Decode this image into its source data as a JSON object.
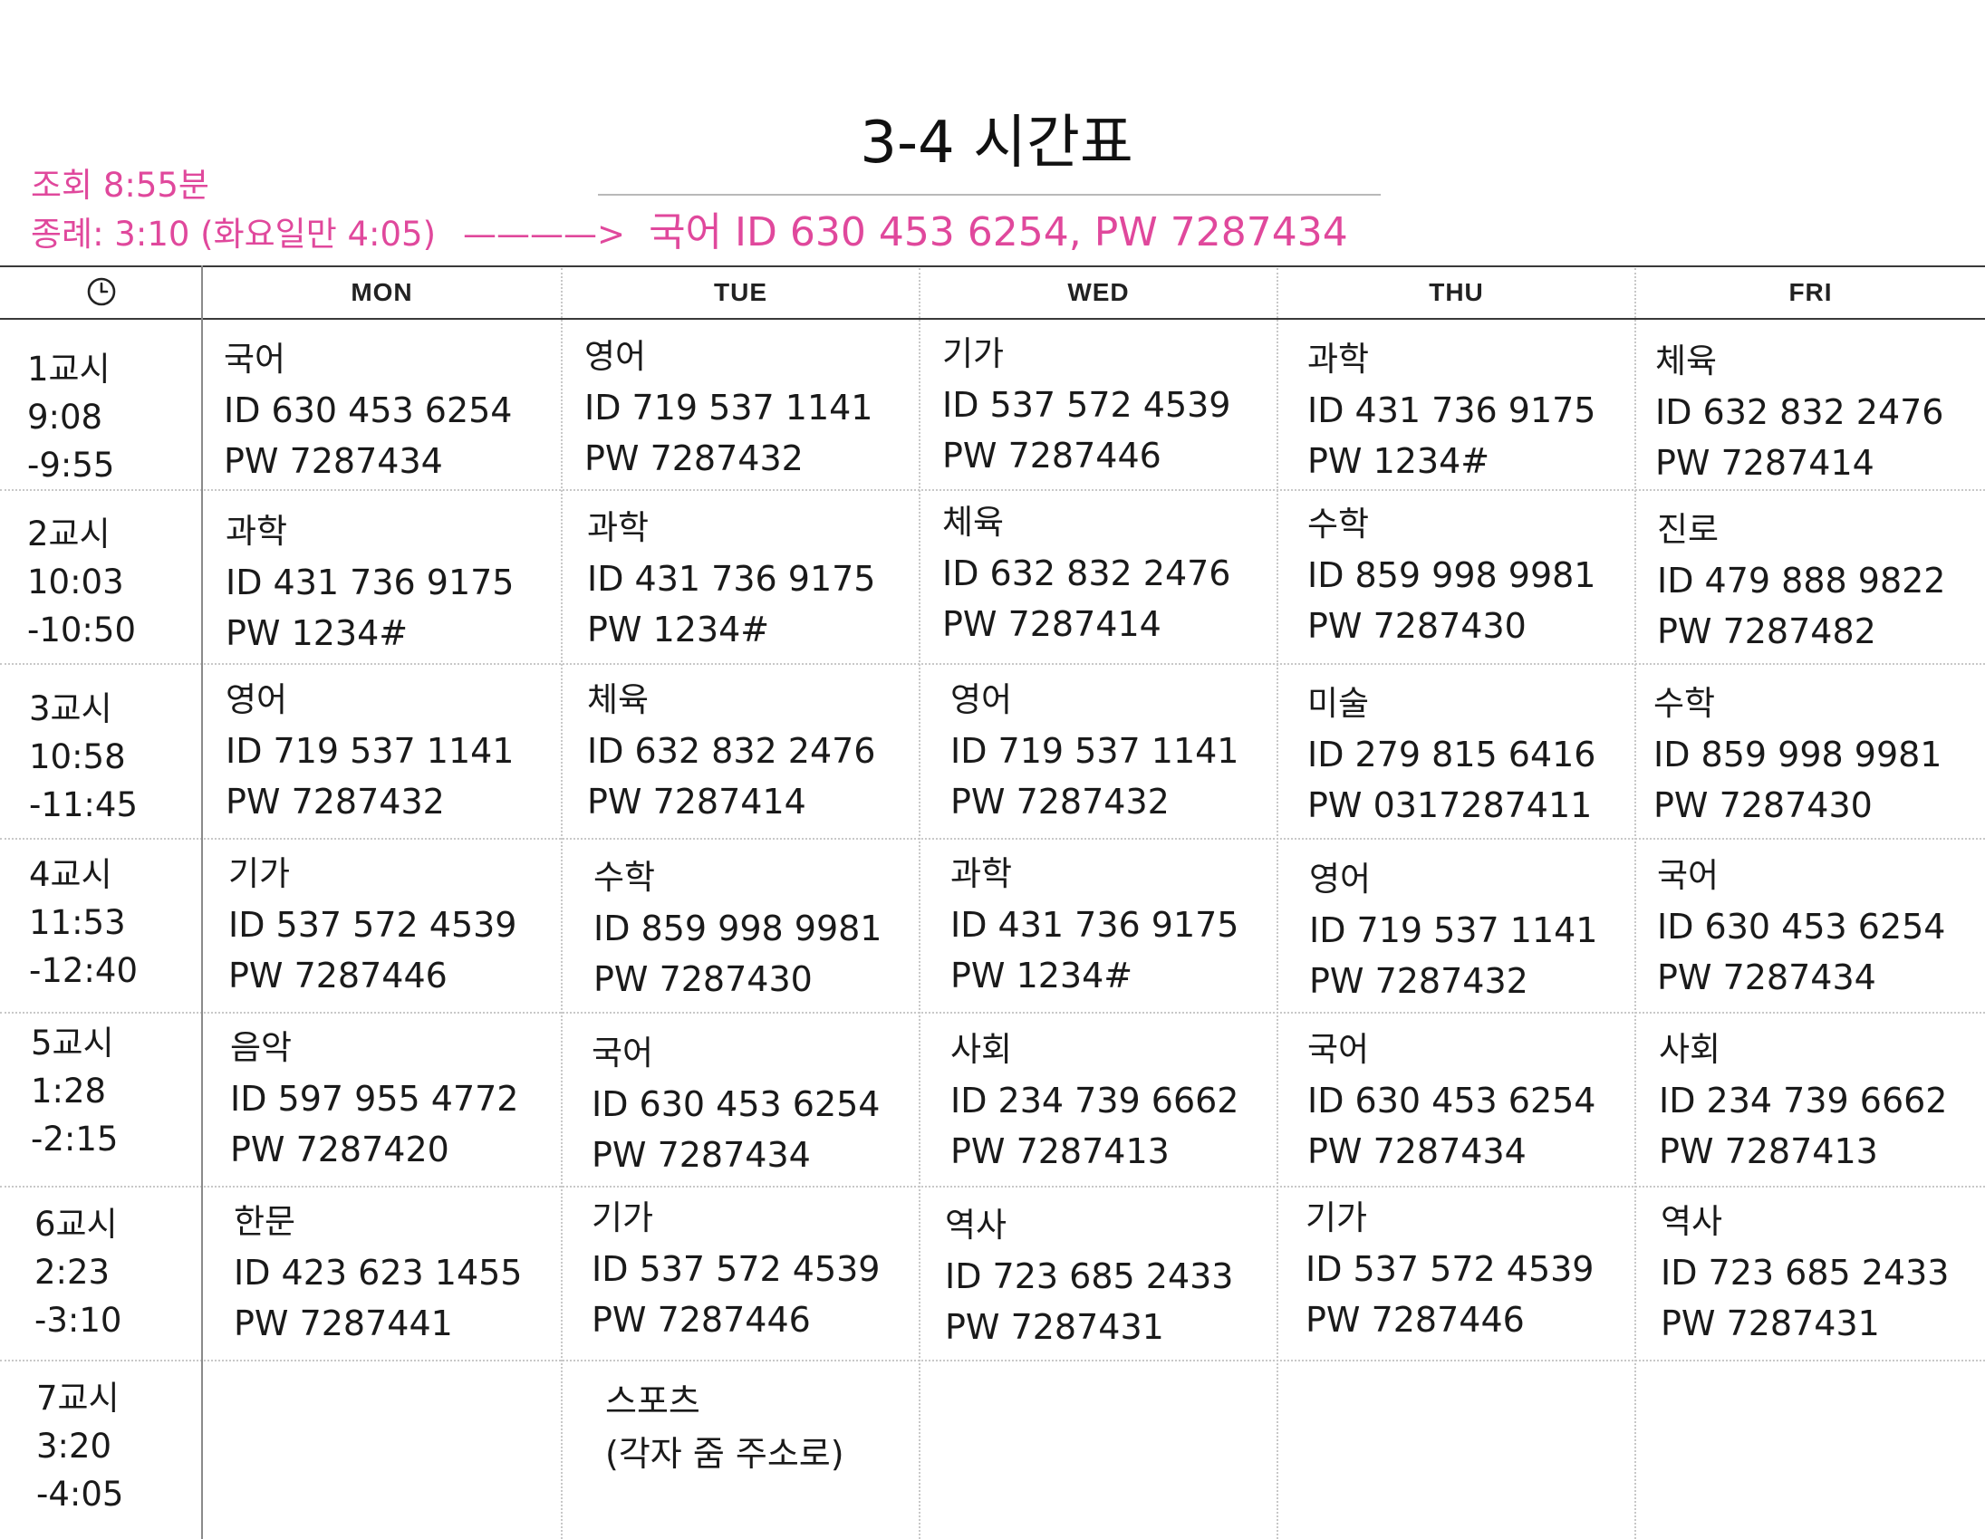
{
  "title": "3-4 시간표",
  "notes": {
    "assembly": "조회 8:55분",
    "closing": "종례: 3:10 (화요일만 4:05)",
    "arrow": "————>",
    "closing_link": "국어 ID 630 453 6254, PW 7287434"
  },
  "days": [
    "MON",
    "TUE",
    "WED",
    "THU",
    "FRI"
  ],
  "header_icon": "clock-icon",
  "periods": [
    {
      "name": "1교시",
      "start": "9:08",
      "end": "-9:55"
    },
    {
      "name": "2교시",
      "start": "10:03",
      "end": "-10:50"
    },
    {
      "name": "3교시",
      "start": "10:58",
      "end": "-11:45"
    },
    {
      "name": "4교시",
      "start": "11:53",
      "end": "-12:40"
    },
    {
      "name": "5교시",
      "start": "1:28",
      "end": "-2:15"
    },
    {
      "name": "6교시",
      "start": "2:23",
      "end": "-3:10"
    },
    {
      "name": "7교시",
      "start": "3:20",
      "end": "-4:05"
    }
  ],
  "rows": [
    [
      {
        "subject": "국어",
        "id": "ID 630 453 6254",
        "pw": "PW 7287434"
      },
      {
        "subject": "영어",
        "id": "ID 719 537 1141",
        "pw": "PW 7287432"
      },
      {
        "subject": "기가",
        "id": "ID 537 572 4539",
        "pw": "PW 7287446"
      },
      {
        "subject": "과학",
        "id": "ID 431 736 9175",
        "pw": "PW 1234#"
      },
      {
        "subject": "체육",
        "id": "ID 632 832 2476",
        "pw": "PW 7287414"
      }
    ],
    [
      {
        "subject": "과학",
        "id": "ID 431 736 9175",
        "pw": "PW 1234#"
      },
      {
        "subject": "과학",
        "id": "ID 431 736 9175",
        "pw": "PW 1234#"
      },
      {
        "subject": "체육",
        "id": "ID 632 832 2476",
        "pw": "PW 7287414"
      },
      {
        "subject": "수학",
        "id": "ID 859 998 9981",
        "pw": "PW 7287430"
      },
      {
        "subject": "진로",
        "id": "ID 479 888 9822",
        "pw": "PW 7287482"
      }
    ],
    [
      {
        "subject": "영어",
        "id": "ID 719 537 1141",
        "pw": "PW 7287432"
      },
      {
        "subject": "체육",
        "id": "ID 632 832 2476",
        "pw": "PW 7287414"
      },
      {
        "subject": "영어",
        "id": "ID 719 537 1141",
        "pw": "PW 7287432"
      },
      {
        "subject": "미술",
        "id": "ID 279 815 6416",
        "pw": "PW 0317287411"
      },
      {
        "subject": "수학",
        "id": "ID 859 998 9981",
        "pw": "PW 7287430"
      }
    ],
    [
      {
        "subject": "기가",
        "id": "ID 537 572 4539",
        "pw": "PW 7287446"
      },
      {
        "subject": "수학",
        "id": "ID 859 998 9981",
        "pw": "PW 7287430"
      },
      {
        "subject": "과학",
        "id": "ID 431 736 9175",
        "pw": "PW 1234#"
      },
      {
        "subject": "영어",
        "id": "ID 719 537 1141",
        "pw": "PW 7287432"
      },
      {
        "subject": "국어",
        "id": "ID 630 453 6254",
        "pw": "PW 7287434"
      }
    ],
    [
      {
        "subject": "음악",
        "id": "ID 597 955 4772",
        "pw": "PW 7287420"
      },
      {
        "subject": "국어",
        "id": "ID 630 453 6254",
        "pw": "PW 7287434"
      },
      {
        "subject": "사회",
        "id": "ID 234 739 6662",
        "pw": "PW 7287413"
      },
      {
        "subject": "국어",
        "id": "ID 630 453 6254",
        "pw": "PW 7287434"
      },
      {
        "subject": "사회",
        "id": "ID 234 739 6662",
        "pw": "PW 7287413"
      }
    ],
    [
      {
        "subject": "한문",
        "id": "ID 423 623 1455",
        "pw": "PW 7287441"
      },
      {
        "subject": "기가",
        "id": "ID 537 572 4539",
        "pw": "PW 7287446"
      },
      {
        "subject": "역사",
        "id": "ID 723 685 2433",
        "pw": "PW 7287431"
      },
      {
        "subject": "기가",
        "id": "ID 537 572 4539",
        "pw": "PW 7287446"
      },
      {
        "subject": "역사",
        "id": "ID 723 685 2433",
        "pw": "PW 7287431"
      }
    ]
  ],
  "period7_tue": {
    "line1": "스포츠",
    "line2": "(각자 줌 주소로)"
  }
}
